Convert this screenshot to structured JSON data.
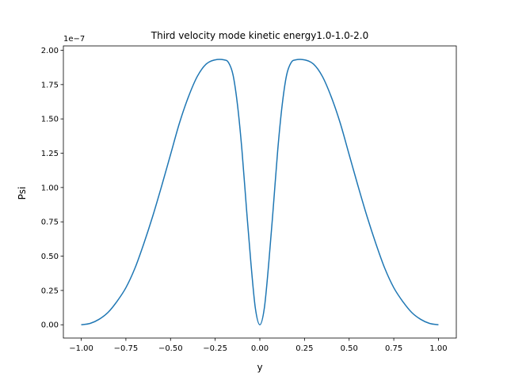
{
  "chart_data": {
    "type": "line",
    "title": "Third velocity mode kinetic energy1.0-1.0-2.0",
    "xlabel": "y",
    "ylabel": "Psi",
    "y_offset_label": "1e−7",
    "y_scale_factor": 1e-07,
    "xlim": [
      -1.1,
      1.1
    ],
    "ylim": [
      -0.0967,
      2.0317
    ],
    "xticks": [
      -1.0,
      -0.75,
      -0.5,
      -0.25,
      0.0,
      0.25,
      0.5,
      0.75,
      1.0
    ],
    "xtick_labels": [
      "−1.00",
      "−0.75",
      "−0.50",
      "−0.25",
      "0.00",
      "0.25",
      "0.50",
      "0.75",
      "1.00"
    ],
    "yticks": [
      0.0,
      0.25,
      0.5,
      0.75,
      1.0,
      1.25,
      1.5,
      1.75,
      2.0
    ],
    "ytick_labels": [
      "0.00",
      "0.25",
      "0.50",
      "0.75",
      "1.00",
      "1.25",
      "1.50",
      "1.75",
      "2.00"
    ],
    "grid": false,
    "legend": "none",
    "series": [
      {
        "color": "#1f77b4",
        "x": [
          -1.0,
          -0.95,
          -0.9,
          -0.85,
          -0.8,
          -0.75,
          -0.7,
          -0.65,
          -0.6,
          -0.55,
          -0.5,
          -0.45,
          -0.4,
          -0.35,
          -0.3,
          -0.25,
          -0.2,
          -0.175,
          -0.15,
          -0.125,
          -0.1,
          -0.075,
          -0.05,
          -0.025,
          0.0,
          0.025,
          0.05,
          0.075,
          0.1,
          0.125,
          0.15,
          0.175,
          0.2,
          0.25,
          0.3,
          0.35,
          0.4,
          0.45,
          0.5,
          0.55,
          0.6,
          0.65,
          0.7,
          0.75,
          0.8,
          0.85,
          0.9,
          0.95,
          1.0
        ],
        "y": [
          0.0,
          0.01,
          0.04,
          0.09,
          0.17,
          0.27,
          0.41,
          0.59,
          0.79,
          1.01,
          1.24,
          1.47,
          1.66,
          1.81,
          1.9,
          1.93,
          1.93,
          1.91,
          1.82,
          1.6,
          1.27,
          0.85,
          0.45,
          0.12,
          0.0,
          0.12,
          0.45,
          0.85,
          1.27,
          1.6,
          1.82,
          1.91,
          1.93,
          1.93,
          1.9,
          1.81,
          1.66,
          1.47,
          1.24,
          1.01,
          0.79,
          0.59,
          0.41,
          0.27,
          0.17,
          0.09,
          0.04,
          0.01,
          0.0
        ]
      }
    ]
  }
}
